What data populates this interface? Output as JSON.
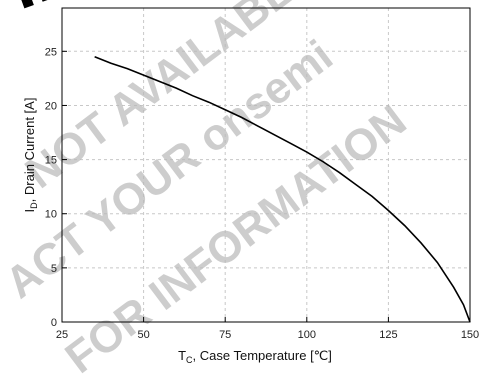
{
  "watermark": {
    "lines": [
      {
        "text": "IN",
        "color": "#000000",
        "opacity": 0.95
      },
      {
        "text": "NOT AVAILABLE",
        "color": "#b8b8b8",
        "opacity": 0.7
      },
      {
        "text": "ACT YOUR onsemi",
        "color": "#b8b8b8",
        "opacity": 0.7
      },
      {
        "text": "FOR INFORMATION",
        "color": "#b8b8b8",
        "opacity": 0.7
      }
    ]
  },
  "chart_data": {
    "type": "line",
    "xlabel_main": "T",
    "xlabel_sub": "C",
    "xlabel_rest": ", Case Temperature [℃]",
    "ylabel_main": "I",
    "ylabel_sub": "D",
    "ylabel_rest": ", Drain Current [A]",
    "xlim": [
      25,
      150
    ],
    "ylim": [
      0,
      29
    ],
    "xticks": [
      25,
      50,
      75,
      100,
      125,
      150
    ],
    "yticks": [
      0,
      5,
      10,
      15,
      20,
      25
    ],
    "grid": true,
    "line_color": "#000000",
    "series": [
      {
        "x": [
          35,
          40,
          45,
          50,
          55,
          60,
          65,
          70,
          75,
          80,
          85,
          90,
          95,
          100,
          105,
          110,
          115,
          120,
          125,
          130,
          135,
          140,
          145,
          148,
          150
        ],
        "y": [
          24.5,
          23.9,
          23.4,
          22.8,
          22.2,
          21.6,
          20.9,
          20.3,
          19.6,
          18.9,
          18.1,
          17.3,
          16.5,
          15.7,
          14.8,
          13.8,
          12.7,
          11.6,
          10.3,
          8.9,
          7.3,
          5.5,
          3.2,
          1.6,
          0
        ]
      }
    ]
  }
}
